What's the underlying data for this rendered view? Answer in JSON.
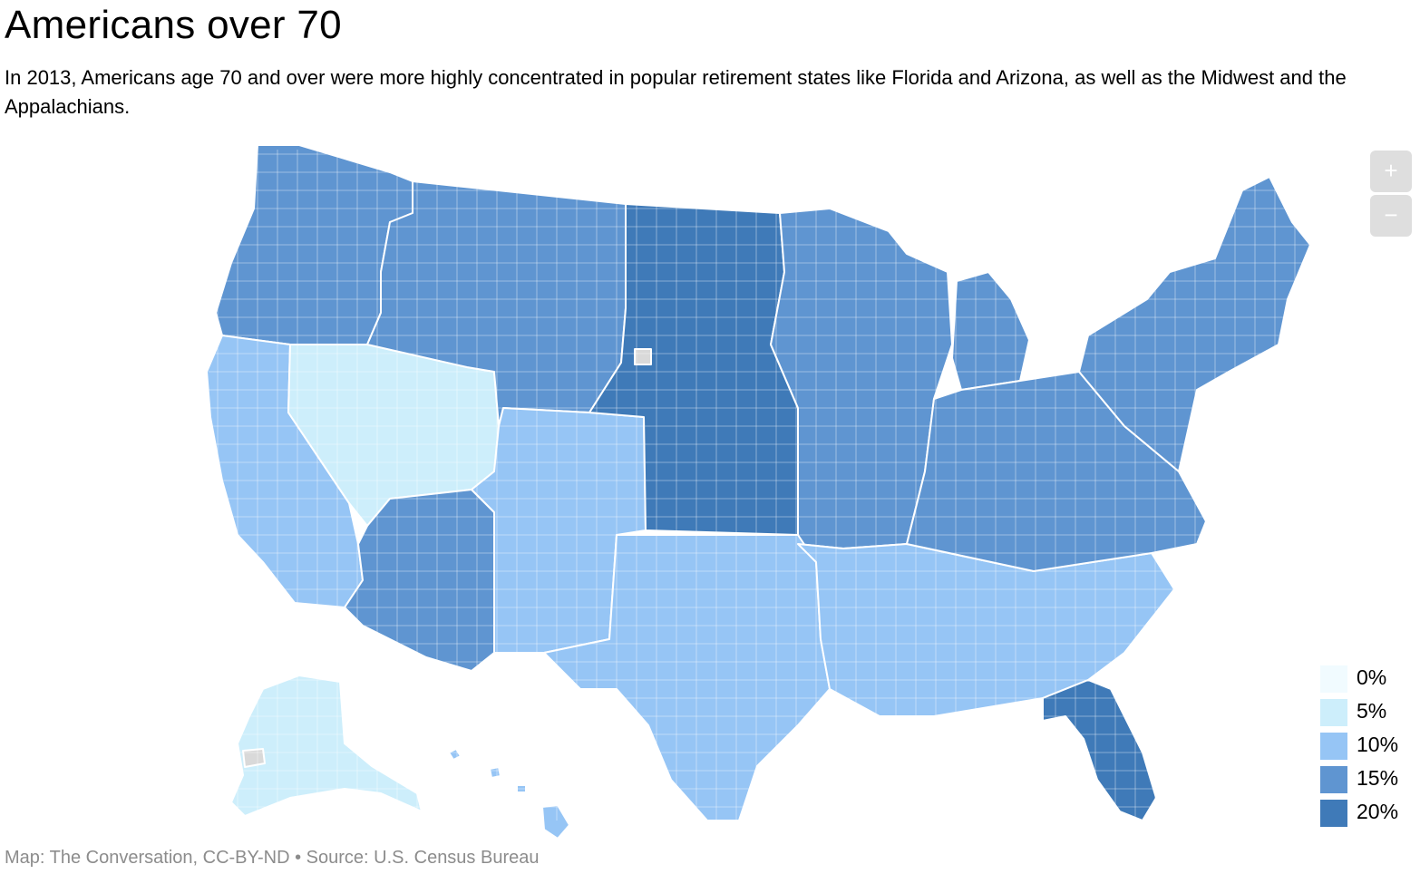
{
  "header": {
    "title": "Americans over 70",
    "subtitle": "In 2013, Americans age 70 and over were more highly concentrated in popular retirement states like Florida and Arizona, as well as the Midwest and the Appalachians."
  },
  "controls": {
    "zoom_in_label": "+",
    "zoom_out_label": "−"
  },
  "legend": {
    "items": [
      {
        "label": "0%",
        "color": "#f1fbff"
      },
      {
        "label": "5%",
        "color": "#cdeefb"
      },
      {
        "label": "10%",
        "color": "#96c5f5"
      },
      {
        "label": "15%",
        "color": "#5f95d1"
      },
      {
        "label": "20%",
        "color": "#3f7ab8"
      }
    ],
    "no_data_color": "#d9d9d9"
  },
  "footer": {
    "credit": "Map: The Conversation, CC-BY-ND • Source: U.S. Census Bureau"
  },
  "map": {
    "regions": [
      {
        "name": "pacific-northwest",
        "value": 15
      },
      {
        "name": "california",
        "value": 10
      },
      {
        "name": "nevada-utah",
        "value": 5
      },
      {
        "name": "arizona",
        "value": 15
      },
      {
        "name": "mountain-north",
        "value": 15
      },
      {
        "name": "colorado-nm",
        "value": 10
      },
      {
        "name": "great-plains",
        "value": 20
      },
      {
        "name": "midwest",
        "value": 15
      },
      {
        "name": "texas",
        "value": 10
      },
      {
        "name": "south",
        "value": 10
      },
      {
        "name": "appalachia",
        "value": 15
      },
      {
        "name": "northeast",
        "value": 15
      },
      {
        "name": "florida",
        "value": 20
      },
      {
        "name": "alaska",
        "value": 5
      },
      {
        "name": "hawaii",
        "value": 10
      }
    ]
  }
}
